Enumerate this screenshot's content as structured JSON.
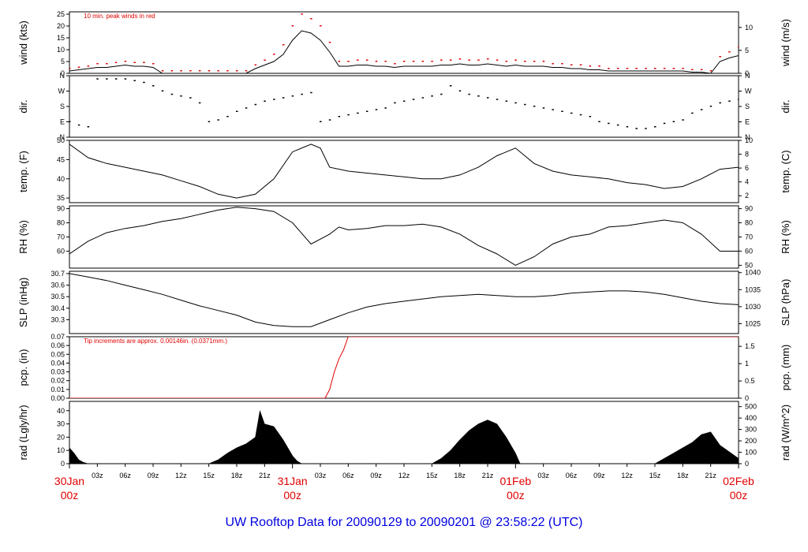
{
  "title": "UW Rooftop Data for 20090129  to  20090201 @ 23:58:22  (UTC)",
  "colors": {
    "data": "#000000",
    "accent": "#e00000",
    "title": "#0000e0"
  },
  "chart_data": {
    "type": "line",
    "x_unit": "hours since 30Jan 00z",
    "x_range": [
      0,
      72
    ],
    "time_ticks": [
      "03z",
      "06z",
      "09z",
      "12z",
      "15z",
      "18z",
      "21z",
      "03z",
      "06z",
      "09z",
      "12z",
      "15z",
      "18z",
      "21z",
      "03z",
      "06z",
      "09z",
      "12z",
      "15z",
      "18z",
      "21z"
    ],
    "time_tick_hours": [
      3,
      6,
      9,
      12,
      15,
      18,
      21,
      27,
      30,
      33,
      36,
      39,
      42,
      45,
      51,
      54,
      57,
      60,
      63,
      66,
      69
    ],
    "day_labels": [
      {
        "day": "30Jan",
        "hour_label": "00z",
        "at": 0
      },
      {
        "day": "31Jan",
        "hour_label": "00z",
        "at": 24
      },
      {
        "day": "01Feb",
        "hour_label": "00z",
        "at": 48
      },
      {
        "day": "02Feb",
        "hour_label": "00z",
        "at": 72
      }
    ],
    "panels": [
      {
        "id": "wind",
        "ylabel_left": "wind (kts)",
        "ylabel_right": "wind (m/s)",
        "note": "10 min. peak winds in red",
        "ylim": [
          0,
          26
        ],
        "ticks_left": [
          0,
          5,
          10,
          15,
          20,
          25
        ],
        "ylim_right": [
          0,
          13.4
        ],
        "ticks_right": [
          0,
          5,
          10
        ],
        "series": [
          {
            "name": "wind",
            "style": "line",
            "color": "#000000",
            "x": [
              0,
              1,
              2,
              3,
              4,
              5,
              6,
              7,
              8,
              9,
              10,
              11,
              12,
              13,
              14,
              15,
              16,
              17,
              18,
              19,
              20,
              21,
              22,
              23,
              24,
              25,
              26,
              27,
              28,
              29,
              30,
              31,
              32,
              33,
              34,
              35,
              36,
              37,
              38,
              39,
              40,
              41,
              42,
              43,
              44,
              45,
              46,
              47,
              48,
              49,
              50,
              51,
              52,
              53,
              54,
              55,
              56,
              57,
              58,
              59,
              60,
              61,
              62,
              63,
              64,
              65,
              66,
              67,
              68,
              69,
              70,
              71,
              72
            ],
            "y": [
              1,
              1.5,
              2,
              2.5,
              2.5,
              3,
              3.5,
              3,
              3,
              2.5,
              0,
              0,
              0,
              0,
              0,
              0,
              0,
              0,
              0,
              0,
              2,
              3.5,
              5,
              8,
              14,
              18,
              17,
              14,
              9,
              3,
              3,
              3.5,
              3.5,
              3,
              3,
              2.5,
              3,
              3,
              3,
              3,
              3.5,
              3.5,
              4,
              3.5,
              3.5,
              4,
              3.5,
              3,
              3.5,
              3,
              3,
              3,
              2.5,
              2.5,
              2,
              2,
              1.5,
              1.5,
              1,
              1,
              1,
              1,
              1,
              1,
              1,
              1,
              1,
              0.5,
              0.5,
              0,
              5,
              6.5,
              7.5
            ]
          },
          {
            "name": "10 min. peak",
            "style": "points",
            "color": "#e00000",
            "x": [
              0,
              1,
              2,
              3,
              4,
              5,
              6,
              7,
              8,
              9,
              10,
              11,
              12,
              13,
              14,
              15,
              16,
              17,
              18,
              19,
              20,
              21,
              22,
              23,
              24,
              25,
              26,
              27,
              28,
              29,
              30,
              31,
              32,
              33,
              34,
              35,
              36,
              37,
              38,
              39,
              40,
              41,
              42,
              43,
              44,
              45,
              46,
              47,
              48,
              49,
              50,
              51,
              52,
              53,
              54,
              55,
              56,
              57,
              58,
              59,
              60,
              61,
              62,
              63,
              64,
              65,
              66,
              67,
              68,
              69,
              70,
              71,
              72
            ],
            "y": [
              2,
              2.5,
              3,
              4,
              4,
              4.5,
              5,
              4.5,
              4.5,
              4,
              1,
              1,
              1,
              1,
              1,
              1,
              1,
              1,
              1,
              1,
              3.5,
              5.5,
              8,
              12,
              20,
              25,
              23,
              20,
              13,
              5,
              5,
              5.5,
              5.5,
              5,
              5,
              4,
              5,
              5,
              5,
              5,
              5.5,
              5.5,
              6,
              5.5,
              5.5,
              6,
              5.5,
              5,
              5.5,
              5,
              5,
              5,
              4,
              4,
              3.5,
              3.5,
              3,
              3,
              2,
              2,
              2,
              2,
              2,
              2,
              2,
              2,
              2,
              1.5,
              1.5,
              1,
              7,
              9,
              11
            ]
          }
        ]
      },
      {
        "id": "dir",
        "ylabel_left": "dir.",
        "ylabel_right": "dir.",
        "ylim": [
          0,
          360
        ],
        "ticks_left": [
          "N",
          "E",
          "S",
          "W",
          "N"
        ],
        "tick_values": [
          0,
          90,
          180,
          270,
          360
        ],
        "series": [
          {
            "name": "dir",
            "style": "points",
            "color": "#000000",
            "x": [
              0,
              1,
              2,
              3,
              4,
              5,
              6,
              7,
              8,
              9,
              10,
              11,
              12,
              13,
              14,
              15,
              16,
              17,
              18,
              19,
              20,
              21,
              22,
              23,
              24,
              25,
              26,
              27,
              28,
              29,
              30,
              31,
              32,
              33,
              34,
              35,
              36,
              37,
              38,
              39,
              40,
              41,
              42,
              43,
              44,
              45,
              46,
              47,
              48,
              49,
              50,
              51,
              52,
              53,
              54,
              55,
              56,
              57,
              58,
              59,
              60,
              61,
              62,
              63,
              64,
              65,
              66,
              67,
              68,
              69,
              70,
              71,
              72
            ],
            "y": [
              90,
              70,
              60,
              340,
              340,
              340,
              340,
              330,
              320,
              300,
              270,
              250,
              240,
              230,
              200,
              90,
              100,
              120,
              150,
              170,
              190,
              210,
              220,
              230,
              240,
              250,
              260,
              90,
              100,
              120,
              130,
              140,
              150,
              160,
              170,
              200,
              210,
              220,
              230,
              240,
              250,
              300,
              270,
              250,
              240,
              230,
              220,
              210,
              200,
              190,
              180,
              170,
              160,
              150,
              140,
              130,
              120,
              90,
              80,
              70,
              60,
              50,
              50,
              60,
              80,
              90,
              100,
              140,
              160,
              180,
              200,
              210,
              220
            ]
          }
        ]
      },
      {
        "id": "temp",
        "ylabel_left": "temp. (F)",
        "ylabel_right": "temp. (C)",
        "ylim": [
          33.8,
          50
        ],
        "ticks_left": [
          35,
          40,
          45,
          50
        ],
        "ylim_right": [
          1,
          10
        ],
        "ticks_right": [
          2,
          4,
          6,
          8,
          10
        ],
        "series": [
          {
            "name": "temp",
            "style": "line",
            "color": "#000000",
            "x": [
              0,
              2,
              4,
              6,
              8,
              10,
              12,
              14,
              16,
              18,
              20,
              22,
              24,
              26,
              27,
              28,
              30,
              32,
              34,
              36,
              38,
              40,
              42,
              44,
              46,
              48,
              50,
              52,
              54,
              56,
              58,
              60,
              62,
              64,
              66,
              68,
              70,
              72
            ],
            "y": [
              49,
              45.5,
              44,
              43,
              42,
              41,
              39.5,
              38,
              36,
              35,
              36,
              40,
              47,
              49,
              48,
              43,
              42,
              41.5,
              41,
              40.5,
              40,
              40,
              41,
              43,
              46,
              48,
              44,
              42,
              41,
              40.5,
              40,
              39,
              38.5,
              37.5,
              38,
              40,
              42.5,
              43
            ]
          }
        ]
      },
      {
        "id": "rh",
        "ylabel_left": "RH (%)",
        "ylabel_right": "RH (%)",
        "ylim": [
          48,
          92
        ],
        "ticks_left": [
          60,
          70,
          80,
          90
        ],
        "ylim_right": [
          48,
          92
        ],
        "ticks_right": [
          50,
          60,
          70,
          80,
          90
        ],
        "series": [
          {
            "name": "rh",
            "style": "line",
            "color": "#000000",
            "x": [
              0,
              2,
              4,
              6,
              8,
              10,
              12,
              14,
              16,
              18,
              20,
              22,
              24,
              26,
              28,
              29,
              30,
              32,
              34,
              36,
              38,
              40,
              42,
              44,
              46,
              48,
              50,
              52,
              54,
              56,
              58,
              60,
              62,
              64,
              66,
              68,
              70,
              72
            ],
            "y": [
              58,
              67,
              73,
              76,
              78,
              81,
              83,
              86,
              89,
              91,
              90,
              88,
              80,
              65,
              72,
              77,
              75,
              76,
              78,
              78,
              79,
              77,
              72,
              64,
              58,
              50,
              56,
              65,
              70,
              72,
              77,
              78,
              80,
              82,
              80,
              72,
              60,
              60
            ]
          }
        ]
      },
      {
        "id": "slp",
        "ylabel_left": "SLP (inHg)",
        "ylabel_right": "SLP (hPa)",
        "ylim": [
          30.18,
          30.72
        ],
        "ticks_left": [
          30.3,
          30.4,
          30.5,
          30.6,
          30.7
        ],
        "ylim_right": [
          1022.1,
          1040.4
        ],
        "ticks_right": [
          1025,
          1030,
          1035,
          1040
        ],
        "series": [
          {
            "name": "slp",
            "style": "line",
            "color": "#000000",
            "x": [
              0,
              2,
              4,
              6,
              8,
              10,
              12,
              14,
              16,
              18,
              20,
              22,
              24,
              26,
              28,
              30,
              32,
              34,
              36,
              38,
              40,
              42,
              44,
              46,
              48,
              50,
              52,
              54,
              56,
              58,
              60,
              62,
              64,
              66,
              68,
              70,
              72
            ],
            "y": [
              30.7,
              30.67,
              30.64,
              30.6,
              30.56,
              30.52,
              30.47,
              30.42,
              30.38,
              30.34,
              30.28,
              30.25,
              30.24,
              30.24,
              30.3,
              30.36,
              30.41,
              30.44,
              30.46,
              30.48,
              30.5,
              30.51,
              30.52,
              30.51,
              30.5,
              30.5,
              30.51,
              30.53,
              30.54,
              30.55,
              30.55,
              30.54,
              30.52,
              30.49,
              30.46,
              30.44,
              30.43
            ]
          }
        ]
      },
      {
        "id": "pcp",
        "ylabel_left": "pcp. (in)",
        "ylabel_right": "pcp. (mm)",
        "note": "Tip increments are approx. 0.00146in. (0.0371mm.)",
        "ylim": [
          0,
          0.07
        ],
        "ticks_left": [
          0.0,
          0.01,
          0.02,
          0.03,
          0.04,
          0.05,
          0.06,
          0.07
        ],
        "ylim_right": [
          0,
          1.778
        ],
        "ticks_right": [
          0,
          0.5,
          1,
          1.5
        ],
        "series": [
          {
            "name": "pcp",
            "style": "line",
            "color": "#e00000",
            "x": [
              0,
              27.5,
              28,
              28.5,
              29,
              29.5,
              30,
              72
            ],
            "y": [
              0,
              0,
              0.01,
              0.03,
              0.045,
              0.055,
              0.07,
              0.07
            ]
          }
        ]
      },
      {
        "id": "rad",
        "ylabel_left": "rad (Lgly/hr)",
        "ylabel_right": "rad (W/m^2)",
        "ylim": [
          0,
          47
        ],
        "ticks_left": [
          0,
          10,
          20,
          30,
          40
        ],
        "ylim_right": [
          0,
          546
        ],
        "ticks_right": [
          0,
          100,
          200,
          300,
          400,
          500
        ],
        "series": [
          {
            "name": "rad",
            "style": "area",
            "color": "#000000",
            "x": [
              0,
              0.5,
              1,
              1.5,
              2,
              15,
              16,
              17,
              18,
              19,
              20,
              20.5,
              21,
              22,
              23,
              24,
              24.5,
              25,
              39,
              40,
              41,
              42,
              43,
              44,
              45,
              46,
              47,
              48,
              48.5,
              63,
              64,
              65,
              66,
              67,
              68,
              69,
              70,
              71,
              72
            ],
            "y": [
              12,
              8,
              3,
              1,
              0,
              0,
              3,
              8,
              12,
              15,
              20,
              40,
              30,
              28,
              18,
              6,
              2,
              0,
              0,
              4,
              10,
              18,
              25,
              30,
              33,
              30,
              20,
              8,
              0,
              0,
              4,
              8,
              12,
              16,
              22,
              24,
              14,
              9,
              4
            ]
          }
        ]
      }
    ]
  }
}
